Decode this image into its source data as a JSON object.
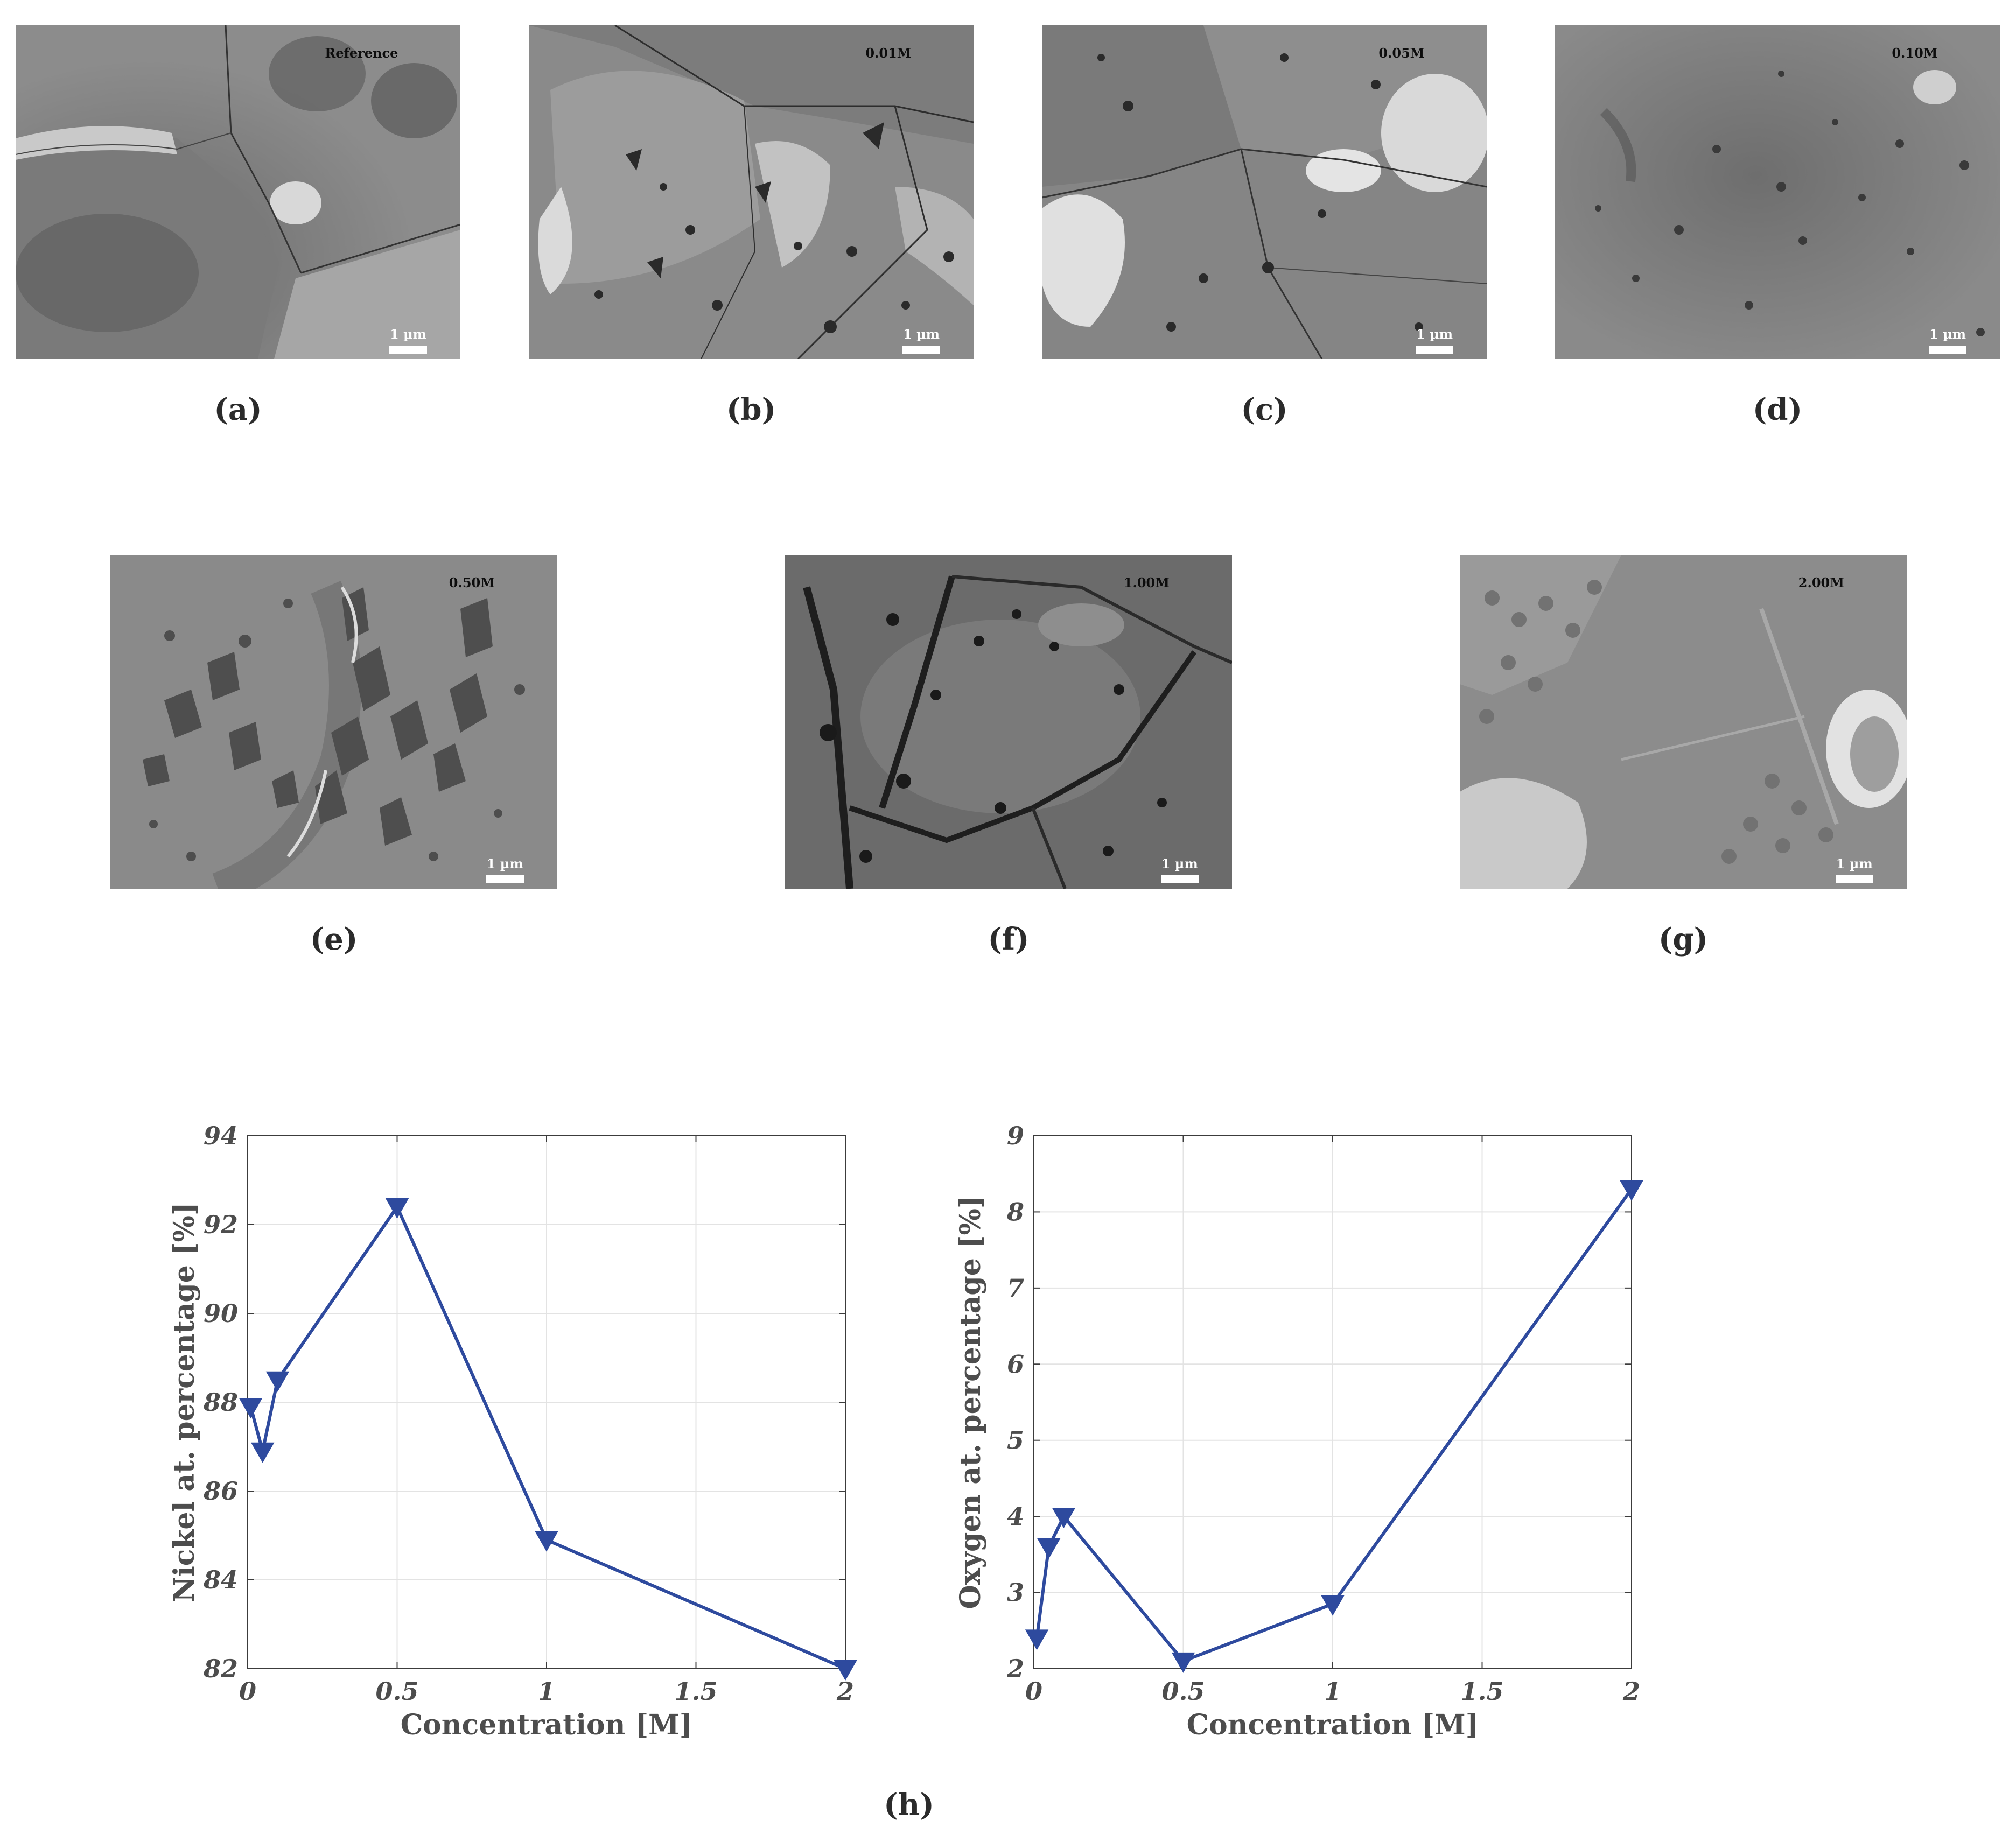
{
  "micrographs": [
    {
      "id": "a",
      "label": "Reference",
      "scalebar": "1 µm",
      "panel_letter": "(a)"
    },
    {
      "id": "b",
      "label": "0.01M",
      "scalebar": "1 µm",
      "panel_letter": "(b)"
    },
    {
      "id": "c",
      "label": "0.05M",
      "scalebar": "1 µm",
      "panel_letter": "(c)"
    },
    {
      "id": "d",
      "label": "0.10M",
      "scalebar": "1 µm",
      "panel_letter": "(d)"
    },
    {
      "id": "e",
      "label": "0.50M",
      "scalebar": "1 µm",
      "panel_letter": "(e)"
    },
    {
      "id": "f",
      "label": "1.00M",
      "scalebar": "1 µm",
      "panel_letter": "(f)"
    },
    {
      "id": "g",
      "label": "2.00M",
      "scalebar": "1 µm",
      "panel_letter": "(g)"
    }
  ],
  "panel_h_letter": "(h)",
  "chart_data": [
    {
      "type": "line",
      "xlabel": "Concentration [M]",
      "ylabel": "Nickel at. percentage [%]",
      "xlim": [
        0,
        2
      ],
      "ylim": [
        82,
        94
      ],
      "xticks": [
        0,
        0.5,
        1,
        1.5,
        2
      ],
      "xtick_labels": [
        "0",
        "0.5",
        "1",
        "1.5",
        "2"
      ],
      "yticks": [
        82,
        84,
        86,
        88,
        90,
        92,
        94
      ],
      "ytick_labels": [
        "82",
        "84",
        "86",
        "88",
        "90",
        "92",
        "94"
      ],
      "grid": true,
      "marker": "downward-triangle",
      "color": "#2e4a9e",
      "series": [
        {
          "x": [
            0.01,
            0.05,
            0.1,
            0.5,
            1,
            2
          ],
          "y": [
            87.9,
            86.9,
            88.5,
            92.4,
            84.9,
            82.0
          ]
        }
      ]
    },
    {
      "type": "line",
      "xlabel": "Concentration [M]",
      "ylabel": "Oxygen at. percentage [%]",
      "xlim": [
        0,
        2
      ],
      "ylim": [
        2,
        9
      ],
      "xticks": [
        0,
        0.5,
        1,
        1.5,
        2
      ],
      "xtick_labels": [
        "0",
        "0.5",
        "1",
        "1.5",
        "2"
      ],
      "yticks": [
        2,
        3,
        4,
        5,
        6,
        7,
        8,
        9
      ],
      "ytick_labels": [
        "2",
        "3",
        "4",
        "5",
        "6",
        "7",
        "8",
        "9"
      ],
      "grid": true,
      "marker": "downward-triangle",
      "color": "#2e4a9e",
      "series": [
        {
          "x": [
            0.01,
            0.05,
            0.1,
            0.5,
            1,
            2
          ],
          "y": [
            2.4,
            3.6,
            4.0,
            2.1,
            2.85,
            8.3
          ]
        }
      ]
    }
  ]
}
